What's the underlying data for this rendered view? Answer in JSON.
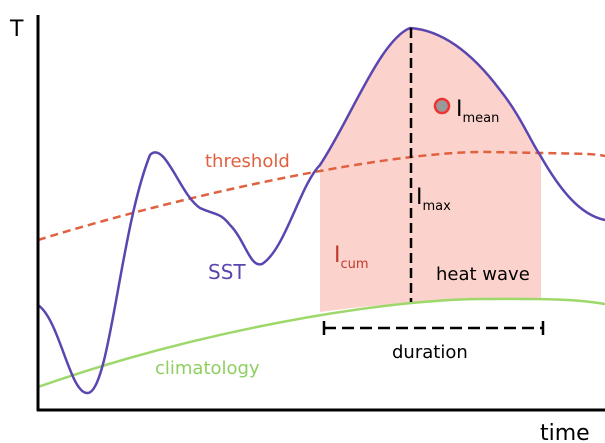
{
  "axes": {
    "y_label": "T",
    "x_label": "time"
  },
  "curves": {
    "threshold": "threshold",
    "sst": "SST",
    "climatology": "climatology"
  },
  "metrics": {
    "cum": {
      "main": "I",
      "sub": "cum"
    },
    "max": {
      "main": "I",
      "sub": "max"
    },
    "mean": {
      "main": "I",
      "sub": "mean"
    }
  },
  "event": {
    "label": "heat wave",
    "duration": "duration"
  }
}
